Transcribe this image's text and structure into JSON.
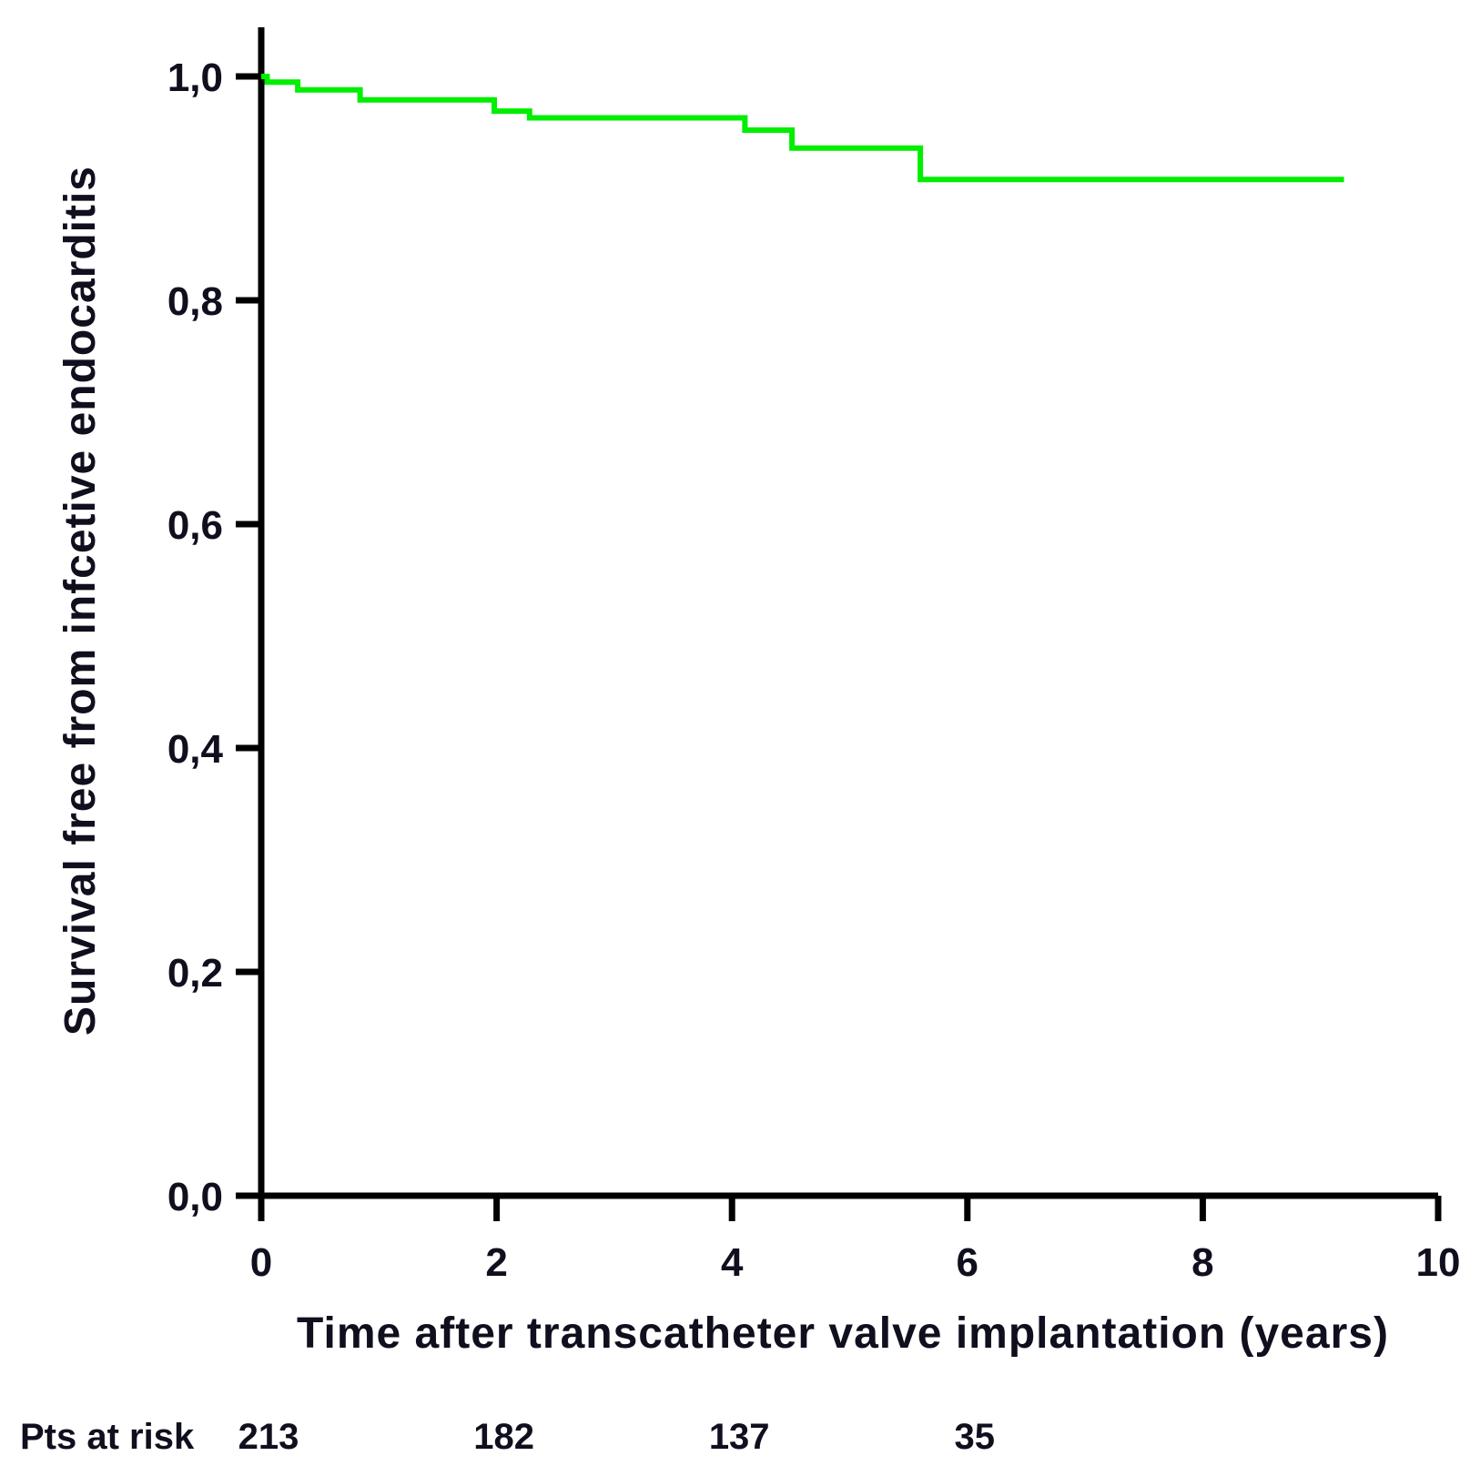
{
  "chart_data": {
    "type": "line",
    "variant": "kaplan-meier-step",
    "title": "",
    "xlabel": "Time after transcatheter valve implantation (years)",
    "ylabel": "Survival free from infcetive endocarditis",
    "xlim": [
      0,
      10
    ],
    "ylim": [
      0.0,
      1.0
    ],
    "grid": false,
    "legend_position": "none",
    "x_ticks": [
      {
        "value": 0,
        "label": "0"
      },
      {
        "value": 2,
        "label": "2"
      },
      {
        "value": 4,
        "label": "4"
      },
      {
        "value": 6,
        "label": "6"
      },
      {
        "value": 8,
        "label": "8"
      },
      {
        "value": 10,
        "label": "10"
      }
    ],
    "y_ticks": [
      {
        "value": 1.0,
        "label": "1,0"
      },
      {
        "value": 0.8,
        "label": "0,8"
      },
      {
        "value": 0.6,
        "label": "0,6"
      },
      {
        "value": 0.4,
        "label": "0,4"
      },
      {
        "value": 0.2,
        "label": "0,2"
      },
      {
        "value": 0.0,
        "label": "0,0"
      }
    ],
    "series": [
      {
        "name": "Survival free from infective endocarditis",
        "color": "#00ee00",
        "end_t": 9.2,
        "steps": [
          {
            "t": 0.0,
            "s": 1.0
          },
          {
            "t": 0.05,
            "s": 0.995
          },
          {
            "t": 0.31,
            "s": 0.988
          },
          {
            "t": 0.84,
            "s": 0.979
          },
          {
            "t": 1.98,
            "s": 0.969
          },
          {
            "t": 2.28,
            "s": 0.963
          },
          {
            "t": 4.11,
            "s": 0.952
          },
          {
            "t": 4.51,
            "s": 0.936
          },
          {
            "t": 5.6,
            "s": 0.908
          }
        ]
      }
    ]
  },
  "risk_table": {
    "label": "Pts at risk",
    "times": [
      0,
      2,
      4,
      6
    ],
    "counts": [
      "213",
      "182",
      "137",
      "35"
    ]
  },
  "colors": {
    "curve": "#00ee00",
    "axis": "#000000",
    "text": "#0f0f1e",
    "background": "#ffffff"
  }
}
